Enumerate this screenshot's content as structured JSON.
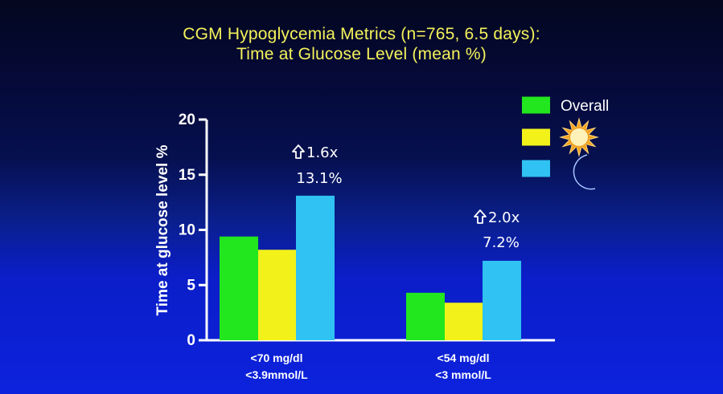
{
  "title": {
    "line1": "CGM Hypoglycemia Metrics (n=765, 6.5 days):",
    "line2": "Time at Glucose Level (mean %)"
  },
  "colors": {
    "title": "#f4f25a",
    "overall": "#22e61e",
    "day": "#f2f21a",
    "night": "#2fc2f2",
    "axis": "#ffffff"
  },
  "chart_data": {
    "type": "bar",
    "ylabel": "Time at glucose level %",
    "ylim": [
      0,
      20
    ],
    "yticks": [
      "0",
      "5",
      "10",
      "15",
      "20"
    ],
    "categories": [
      [
        "<70 mg/dl",
        "<3.9mmol/L"
      ],
      [
        "<54 mg/dl",
        "<3 mmol/L"
      ]
    ],
    "series": [
      {
        "name": "Overall",
        "icon": "",
        "color": "#22e61e",
        "values": [
          9.4,
          4.3
        ]
      },
      {
        "name": "",
        "icon": "sun-icon",
        "color": "#f2f21a",
        "values": [
          8.2,
          3.4
        ]
      },
      {
        "name": "",
        "icon": "moon-icon",
        "color": "#2fc2f2",
        "values": [
          13.1,
          7.2
        ]
      }
    ],
    "annotations": [
      {
        "ratio": "1.6x",
        "value": "13.1%"
      },
      {
        "ratio": "2.0x",
        "value": "7.2%"
      }
    ],
    "legend_position": "top-right",
    "grid": false
  }
}
